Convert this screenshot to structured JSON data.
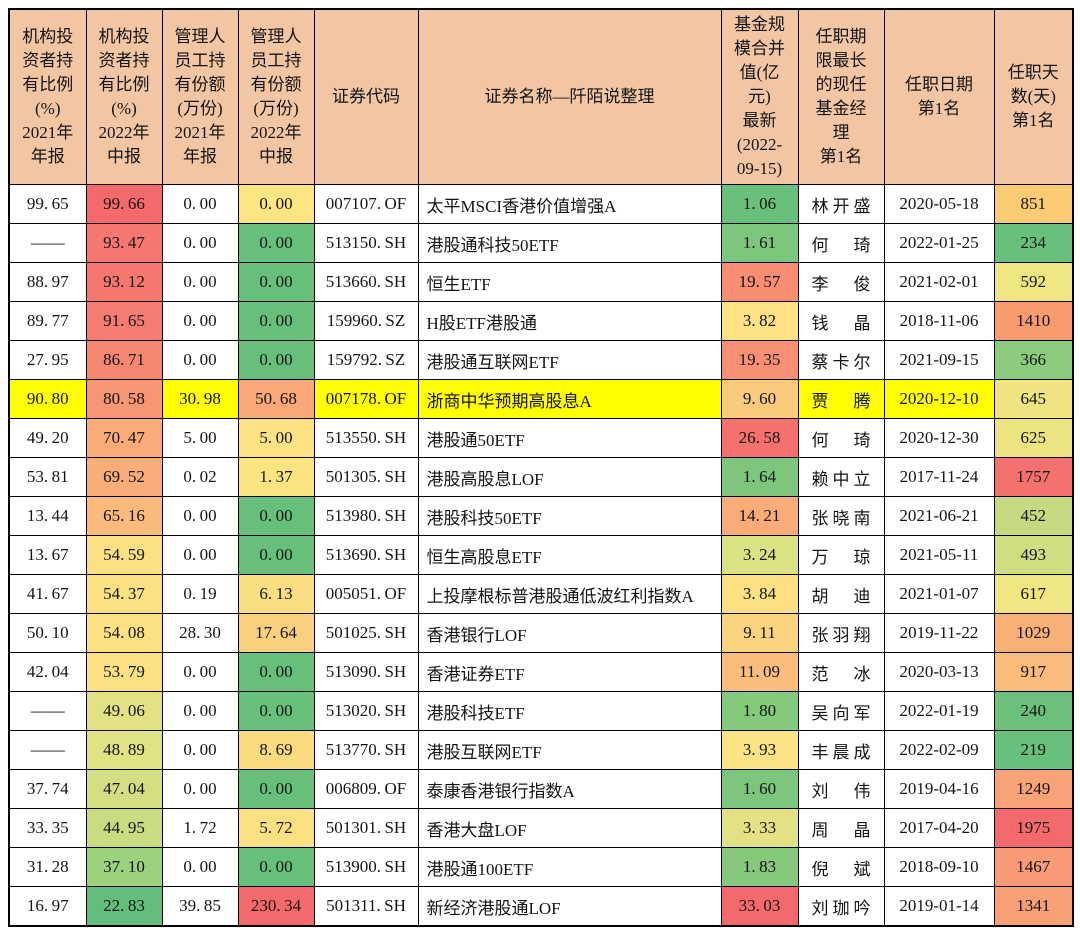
{
  "colors": {
    "background": "#FFFFFF",
    "header_bg": "#F2C6A2",
    "border": "#000000",
    "row_highlight_yellow": "#FFFF00",
    "scale_red": "#F4696C",
    "scale_yellow": "#FFEB84",
    "scale_green": "#63BE7B"
  },
  "chart_data": {
    "type": "table",
    "title": "证券名称—阡陌说整理",
    "columns": [
      "机构投\n资者持\n有比例\n(%)\n2021年\n年报",
      "机构投\n资者持\n有比例\n(%)\n2022年\n中报",
      "管理人\n员工持\n有份额\n(万份)\n2021年\n年报",
      "管理人\n员工持\n有份额\n(万份)\n2022年\n中报",
      "证券代码",
      "证券名称—阡陌说整理",
      "基金规\n模合并\n值(亿\n元)\n最新\n(2022-\n09-15)",
      "任职期\n限最长\n的现任\n基金经\n理\n第1名",
      "任职日期\n第1名",
      "任职天\n数(天)\n第1名"
    ],
    "rows": [
      [
        "99.65",
        "99.66",
        "0.00",
        "0.00",
        "007107.OF",
        "太平MSCI香港价值增强A",
        "1.06",
        "林开盛",
        "2020-05-18",
        "851"
      ],
      [
        "——",
        "93.47",
        "0.00",
        "0.00",
        "513150.SH",
        "港股通科技50ETF",
        "1.61",
        "何琦",
        "2022-01-25",
        "234"
      ],
      [
        "88.97",
        "93.12",
        "0.00",
        "0.00",
        "513660.SH",
        "恒生ETF",
        "19.57",
        "李俊",
        "2021-02-01",
        "592"
      ],
      [
        "89.77",
        "91.65",
        "0.00",
        "0.00",
        "159960.SZ",
        "H股ETF港股通",
        "3.82",
        "钱晶",
        "2018-11-06",
        "1410"
      ],
      [
        "27.95",
        "86.71",
        "0.00",
        "0.00",
        "159792.SZ",
        "港股通互联网ETF",
        "19.35",
        "蔡卡尔",
        "2021-09-15",
        "366"
      ],
      [
        "90.80",
        "80.58",
        "30.98",
        "50.68",
        "007178.OF",
        "浙商中华预期高股息A",
        "9.60",
        "贾腾",
        "2020-12-10",
        "645"
      ],
      [
        "49.20",
        "70.47",
        "5.00",
        "5.00",
        "513550.SH",
        "港股通50ETF",
        "26.58",
        "何琦",
        "2020-12-30",
        "625"
      ],
      [
        "53.81",
        "69.52",
        "0.02",
        "1.37",
        "501305.SH",
        "港股高股息LOF",
        "1.64",
        "赖中立",
        "2017-11-24",
        "1757"
      ],
      [
        "13.44",
        "65.16",
        "0.00",
        "0.00",
        "513980.SH",
        "港股科技50ETF",
        "14.21",
        "张晓南",
        "2021-06-21",
        "452"
      ],
      [
        "13.67",
        "54.59",
        "0.00",
        "0.00",
        "513690.SH",
        "恒生高股息ETF",
        "3.24",
        "万琼",
        "2021-05-11",
        "493"
      ],
      [
        "41.67",
        "54.37",
        "0.19",
        "6.13",
        "005051.OF",
        "上投摩根标普港股通低波红利指数A",
        "3.84",
        "胡迪",
        "2021-01-07",
        "617"
      ],
      [
        "50.10",
        "54.08",
        "28.30",
        "17.64",
        "501025.SH",
        "香港银行LOF",
        "9.11",
        "张羽翔",
        "2019-11-22",
        "1029"
      ],
      [
        "42.04",
        "53.79",
        "0.00",
        "0.00",
        "513090.SH",
        "香港证券ETF",
        "11.09",
        "范冰",
        "2020-03-13",
        "917"
      ],
      [
        "——",
        "49.06",
        "0.00",
        "0.00",
        "513020.SH",
        "港股科技ETF",
        "1.80",
        "吴向军",
        "2022-01-19",
        "240"
      ],
      [
        "——",
        "48.89",
        "0.00",
        "8.69",
        "513770.SH",
        "港股互联网ETF",
        "3.93",
        "丰晨成",
        "2022-02-09",
        "219"
      ],
      [
        "37.74",
        "47.04",
        "0.00",
        "0.00",
        "006809.OF",
        "泰康香港银行指数A",
        "1.60",
        "刘伟",
        "2019-04-16",
        "1249"
      ],
      [
        "33.35",
        "44.95",
        "1.72",
        "5.72",
        "501301.SH",
        "香港大盘LOF",
        "3.33",
        "周晶",
        "2017-04-20",
        "1975"
      ],
      [
        "31.28",
        "37.10",
        "0.00",
        "0.00",
        "513900.SH",
        "港股通100ETF",
        "1.83",
        "倪斌",
        "2018-09-10",
        "1467"
      ],
      [
        "16.97",
        "22.83",
        "39.85",
        "230.34",
        "501311.SH",
        "新经济港股通LOF",
        "33.03",
        "刘珈吟",
        "2019-01-14",
        "1341"
      ]
    ],
    "highlighted_row_index": 5,
    "legend_position": "none",
    "grid": true
  },
  "presentation": {
    "cell_colors": [
      [
        null,
        "#F4696C",
        null,
        "#FCE583",
        null,
        null,
        "#69C07B",
        null,
        null,
        "#FBCB74"
      ],
      [
        null,
        "#F5776F",
        null,
        "#66BF7B",
        null,
        null,
        "#7CC67C",
        null,
        null,
        "#69C07B"
      ],
      [
        null,
        "#F5786F",
        null,
        "#66BF7B",
        null,
        null,
        "#F78E72",
        null,
        null,
        "#EFE681"
      ],
      [
        null,
        "#F57C70",
        null,
        "#66BF7B",
        null,
        null,
        "#FCE283",
        null,
        null,
        "#F89C70"
      ],
      [
        null,
        "#F68872",
        null,
        "#66BF7B",
        null,
        null,
        "#F79072",
        null,
        null,
        "#8BCB7D"
      ],
      [
        "#FFFF00",
        "#F79674",
        "#FFFF00",
        "#F9A877",
        "#FFFF00",
        "#FFFF00",
        "#FACB7D",
        "#FFFF00",
        "#FFFF00",
        "#EFE480"
      ],
      [
        null,
        "#F9AC78",
        null,
        "#FCE283",
        null,
        null,
        "#F4716D",
        null,
        null,
        "#EBE481"
      ],
      [
        null,
        "#F9AE79",
        null,
        "#FCE483",
        null,
        null,
        "#7DC67C",
        null,
        null,
        "#F4716E"
      ],
      [
        null,
        "#FABA7B",
        null,
        "#66BF7B",
        null,
        null,
        "#F9AC78",
        null,
        null,
        "#C6DB81"
      ],
      [
        null,
        "#FCDF82",
        null,
        "#66BF7B",
        null,
        null,
        "#DCE183",
        null,
        null,
        "#CEDE81"
      ],
      [
        null,
        "#FCE082",
        null,
        "#FBDE81",
        null,
        null,
        "#FCE082",
        null,
        null,
        "#EFE681"
      ],
      [
        null,
        "#FCE082",
        null,
        "#FACF7E",
        null,
        null,
        "#FBD37F",
        null,
        null,
        "#F9B077"
      ],
      [
        null,
        "#FCE182",
        null,
        "#66BF7B",
        null,
        null,
        "#FABD7B",
        null,
        null,
        "#FABB7B"
      ],
      [
        null,
        "#E2E284",
        null,
        "#66BF7B",
        null,
        null,
        "#85C97D",
        null,
        null,
        "#6BC17B"
      ],
      [
        null,
        "#E1E284",
        null,
        "#FBDA80",
        null,
        null,
        "#FCE383",
        null,
        null,
        "#67C07B"
      ],
      [
        null,
        "#D3DF82",
        null,
        "#66BF7B",
        null,
        null,
        "#7BC67C",
        null,
        null,
        "#F8A376"
      ],
      [
        null,
        "#C9DC81",
        null,
        "#FBE082",
        null,
        null,
        "#E2E284",
        null,
        null,
        "#F4696C"
      ],
      [
        null,
        "#9CD17E",
        null,
        "#66BF7B",
        null,
        null,
        "#86C97D",
        null,
        null,
        "#F89A75"
      ],
      [
        null,
        "#63BE7B",
        null,
        "#F4696C",
        null,
        null,
        "#F4696C",
        null,
        null,
        "#F8A075"
      ]
    ]
  }
}
